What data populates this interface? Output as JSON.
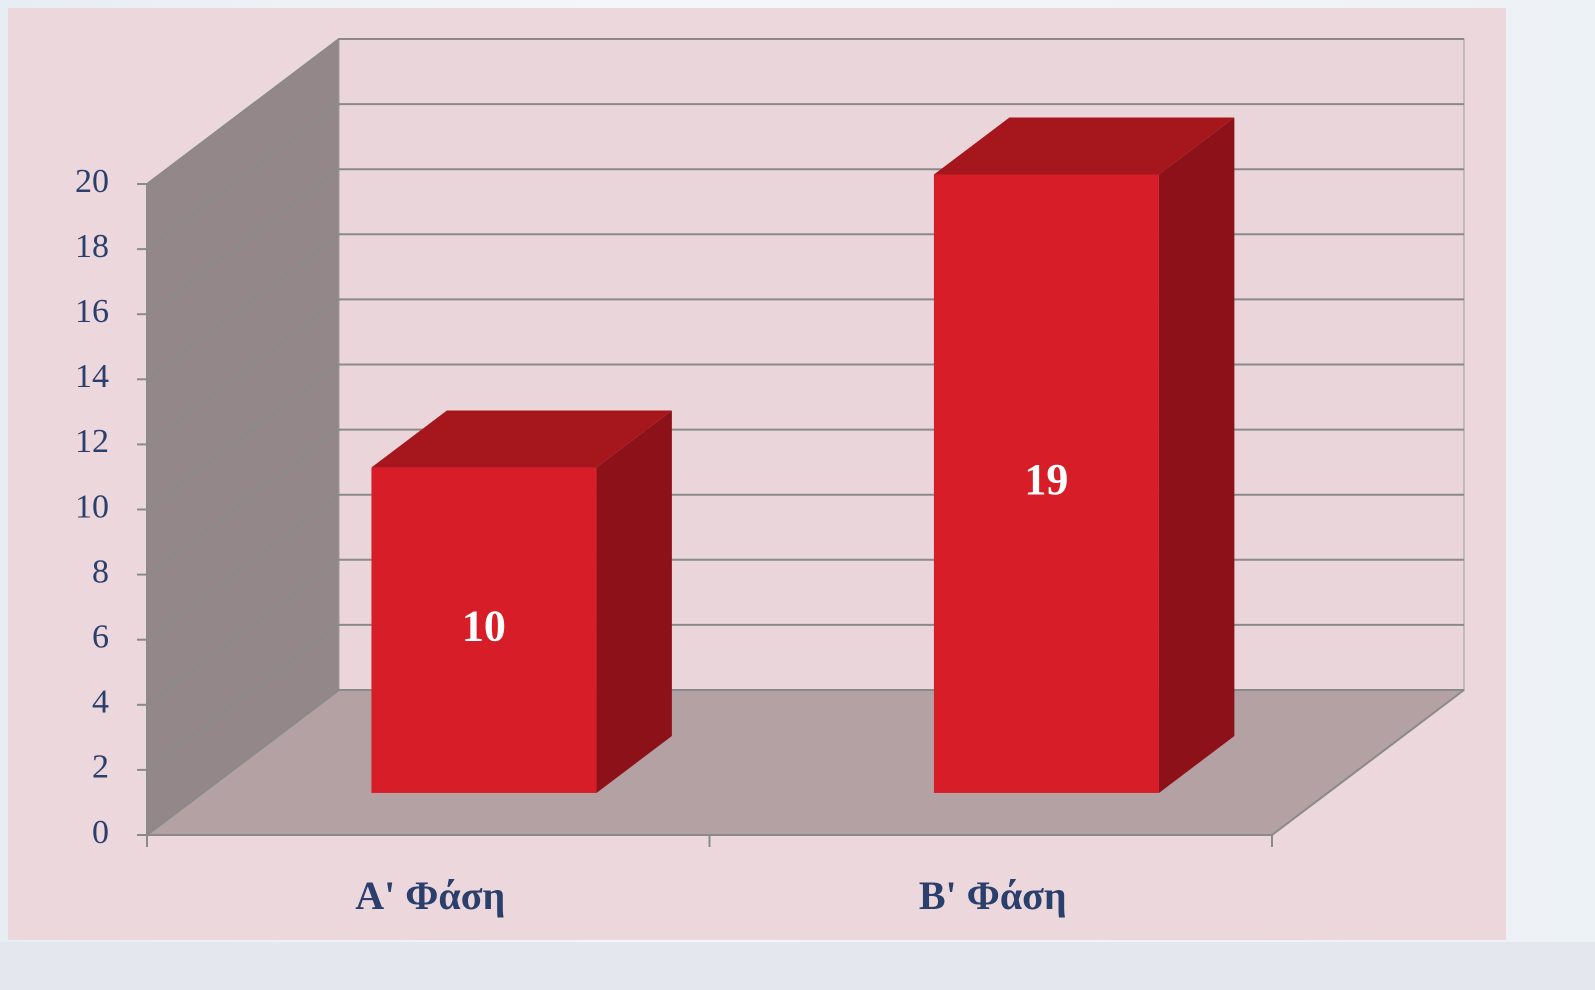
{
  "chart_data": {
    "type": "bar3d",
    "categories": [
      "A' Φάση",
      "B' Φάση"
    ],
    "values": [
      10,
      19
    ],
    "value_labels": [
      "10",
      "19"
    ],
    "color": "#d71e28",
    "ylim": [
      0,
      20
    ],
    "yticks": [
      0,
      2,
      4,
      6,
      8,
      10,
      12,
      14,
      16,
      18,
      20
    ],
    "grid": true
  }
}
